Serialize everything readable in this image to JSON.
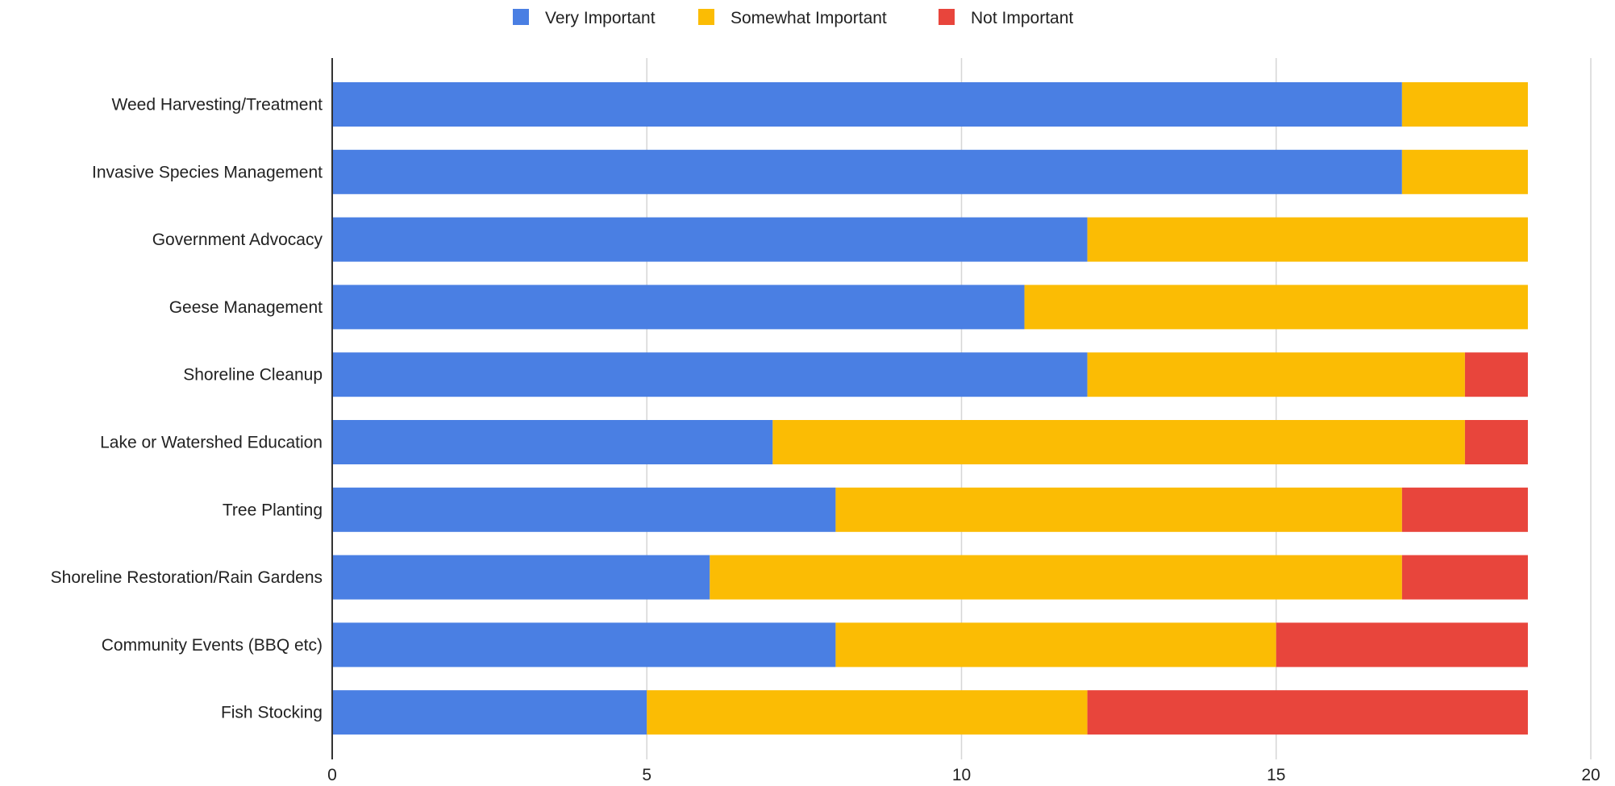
{
  "chart_data": {
    "type": "bar",
    "orientation": "horizontal",
    "stacked": true,
    "title": "",
    "xlabel": "",
    "ylabel": "",
    "categories": [
      "Weed Harvesting/Treatment",
      "Invasive Species Management",
      "Government Advocacy",
      "Geese Management",
      "Shoreline Cleanup",
      "Lake or Watershed Education",
      "Tree Planting",
      "Shoreline Restoration/Rain Gardens",
      "Community Events (BBQ etc)",
      "Fish Stocking"
    ],
    "series": [
      {
        "name": "Very Important",
        "color": "#4a7fe3",
        "values": [
          17,
          17,
          12,
          11,
          12,
          7,
          8,
          6,
          8,
          5
        ]
      },
      {
        "name": "Somewhat Important",
        "color": "#fbbc04",
        "values": [
          2,
          2,
          7,
          8,
          6,
          11,
          9,
          11,
          7,
          7
        ]
      },
      {
        "name": "Not Important",
        "color": "#e8453c",
        "values": [
          0,
          0,
          0,
          0,
          1,
          1,
          2,
          2,
          4,
          7
        ]
      }
    ],
    "xlim": [
      0,
      20
    ],
    "xticks": [
      0,
      5,
      10,
      15,
      20
    ],
    "grid": true,
    "legend_position": "top-center"
  }
}
